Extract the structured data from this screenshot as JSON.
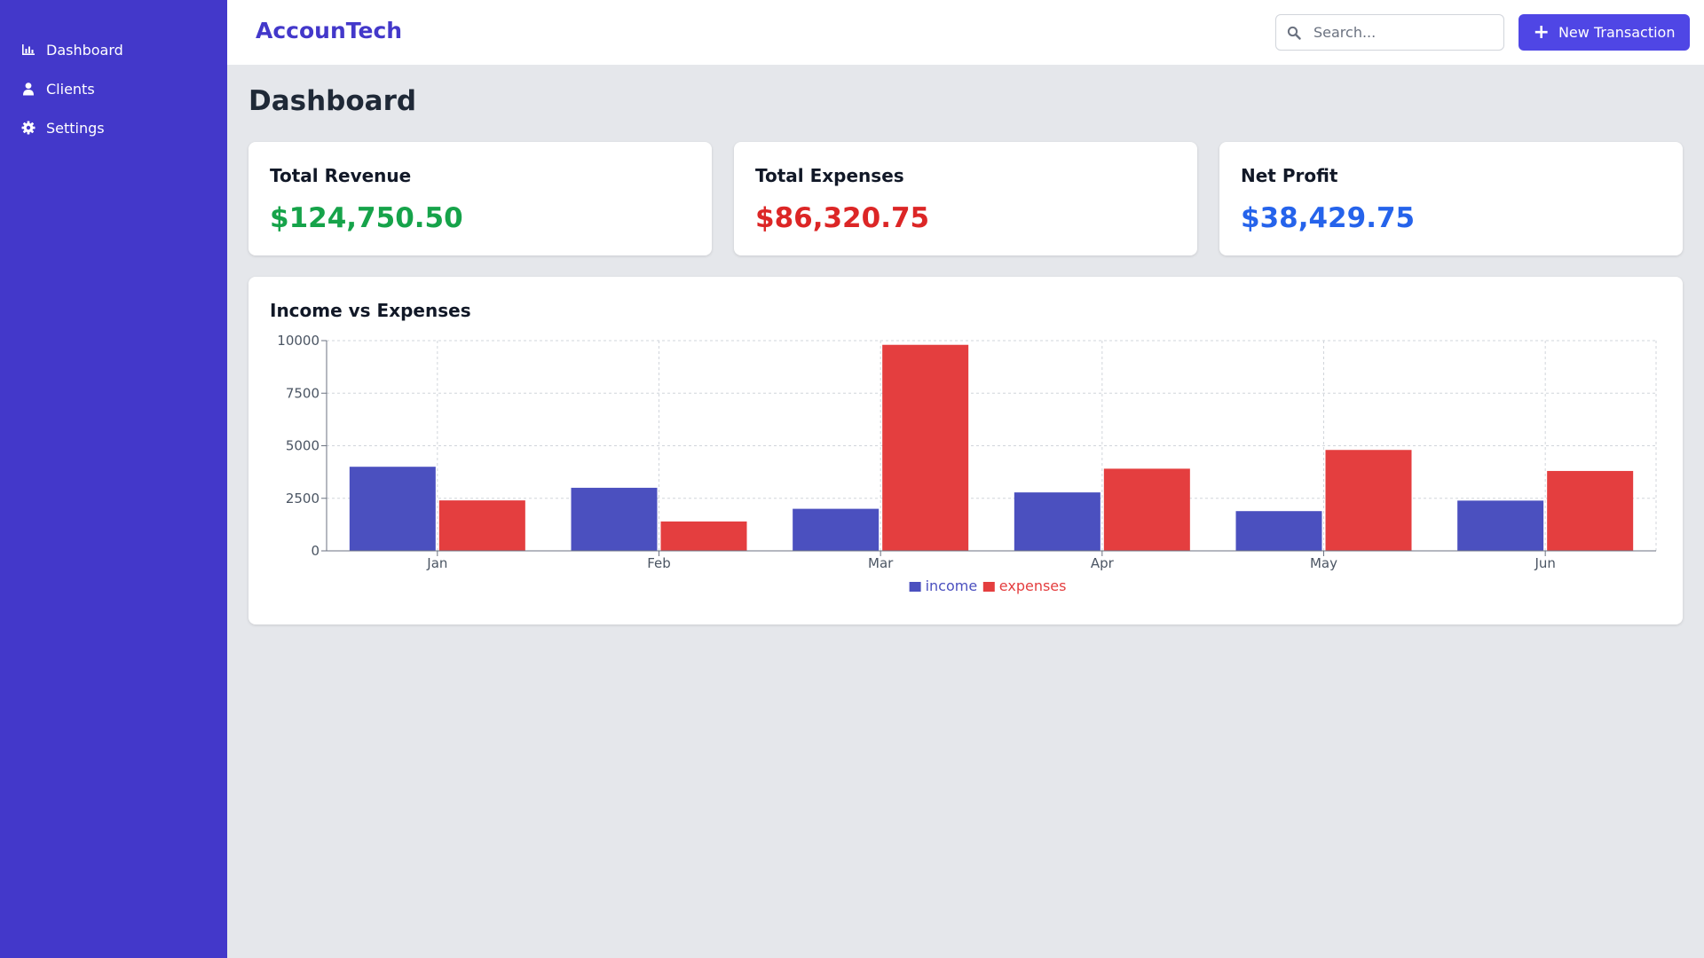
{
  "app": {
    "name": "AccounTech"
  },
  "sidebar": {
    "items": [
      {
        "label": "Dashboard",
        "icon": "chart-bar-icon"
      },
      {
        "label": "Clients",
        "icon": "user-icon"
      },
      {
        "label": "Settings",
        "icon": "gear-icon"
      }
    ]
  },
  "header": {
    "search_placeholder": "Search...",
    "new_button_label": "New Transaction"
  },
  "page": {
    "title": "Dashboard"
  },
  "stats": {
    "revenue": {
      "label": "Total Revenue",
      "value": "$124,750.50",
      "color": "#16a34a"
    },
    "expenses": {
      "label": "Total Expenses",
      "value": "$86,320.75",
      "color": "#dc2626"
    },
    "profit": {
      "label": "Net Profit",
      "value": "$38,429.75",
      "color": "#2563eb"
    }
  },
  "colors": {
    "sidebar": "#4338ca",
    "accent": "#4f46e5",
    "income": "#4b50bf",
    "expenses": "#e43e3f"
  },
  "chart_data": {
    "type": "bar",
    "title": "Income vs Expenses",
    "categories": [
      "Jan",
      "Feb",
      "Mar",
      "Apr",
      "May",
      "Jun"
    ],
    "series": [
      {
        "name": "income",
        "values": [
          4000,
          3000,
          2000,
          2780,
          1890,
          2390
        ],
        "color": "#4b50bf"
      },
      {
        "name": "expenses",
        "values": [
          2400,
          1398,
          9800,
          3908,
          4800,
          3800
        ],
        "color": "#e43e3f"
      }
    ],
    "yticks": [
      "0",
      "2500",
      "5000",
      "7500",
      "10000"
    ],
    "ylim": [
      0,
      10000
    ],
    "grid": true,
    "legend": "bottom-center"
  }
}
